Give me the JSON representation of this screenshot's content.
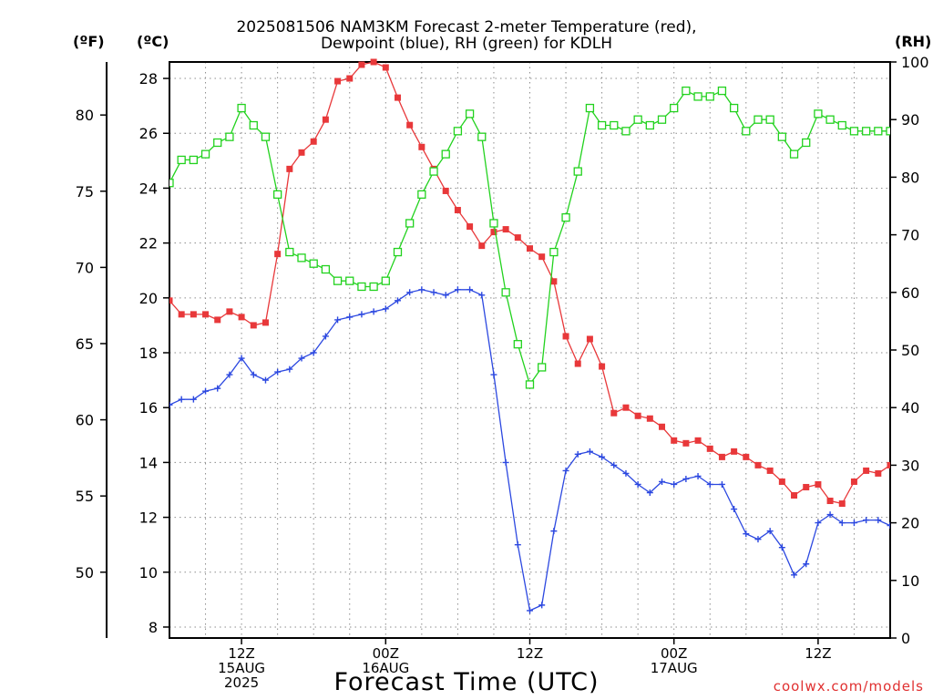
{
  "title_line1": "2025081506 NAM3KM Forecast 2-meter Temperature (red),",
  "title_line2": "Dewpoint (blue), RH (green) for KDLH",
  "unit_f": "(ºF)",
  "unit_c": "(ºC)",
  "unit_rh": "(RH)",
  "x_title": "Forecast Time (UTC)",
  "credit": "coolwx.com/models",
  "chart_data": {
    "type": "line",
    "title": "2025081506 NAM3KM Forecast 2-meter Temperature (red), Dewpoint (blue), RH (green) for KDLH",
    "xlabel": "Forecast Time (UTC)",
    "x_hours": [
      6,
      7,
      8,
      9,
      10,
      11,
      12,
      13,
      14,
      15,
      16,
      17,
      18,
      19,
      20,
      21,
      22,
      23,
      24,
      25,
      26,
      27,
      28,
      29,
      30,
      31,
      32,
      33,
      34,
      35,
      36,
      37,
      38,
      39,
      40,
      41,
      42,
      43,
      44,
      45,
      46,
      47,
      48,
      49,
      50,
      51,
      52,
      53,
      54,
      55,
      56,
      57,
      58,
      59,
      60,
      61,
      62,
      63,
      64,
      65,
      66
    ],
    "xlim": [
      6,
      66
    ],
    "x_ticks": [
      {
        "hour": 12,
        "lines": [
          "12Z",
          "15AUG",
          "2025"
        ]
      },
      {
        "hour": 24,
        "lines": [
          "00Z",
          "16AUG"
        ]
      },
      {
        "hour": 36,
        "lines": [
          "12Z"
        ]
      },
      {
        "hour": 48,
        "lines": [
          "00Z",
          "17AUG"
        ]
      },
      {
        "hour": 60,
        "lines": [
          "12Z"
        ]
      }
    ],
    "left_axis_c": {
      "label": "(ºC)",
      "ylim": [
        7.6,
        28.6
      ],
      "ticks": [
        "8",
        "10",
        "12",
        "14",
        "16",
        "18",
        "20",
        "22",
        "24",
        "26",
        "28"
      ]
    },
    "left_axis_f": {
      "label": "(ºF)",
      "ticks": [
        "50",
        "55",
        "60",
        "65",
        "70",
        "75",
        "80"
      ]
    },
    "right_axis_rh": {
      "label": "(RH)",
      "ylim": [
        0,
        100
      ],
      "ticks": [
        "0",
        "10",
        "20",
        "30",
        "40",
        "50",
        "60",
        "70",
        "80",
        "90",
        "100"
      ]
    },
    "grid": true,
    "series": [
      {
        "name": "Temperature",
        "units": "C",
        "axis": "c",
        "color": "#e8383a",
        "marker": "filled-square",
        "values": [
          19.9,
          19.4,
          19.4,
          19.4,
          19.2,
          19.5,
          19.3,
          19.0,
          19.1,
          21.6,
          24.7,
          25.3,
          25.7,
          26.5,
          27.9,
          28.0,
          28.5,
          28.6,
          28.4,
          27.3,
          26.3,
          25.5,
          24.7,
          23.9,
          23.2,
          22.6,
          21.9,
          22.4,
          22.5,
          22.2,
          21.8,
          21.5,
          20.6,
          18.6,
          17.6,
          18.5,
          17.5,
          15.8,
          16.0,
          15.7,
          15.6,
          15.3,
          14.8,
          14.7,
          14.8,
          14.5,
          14.2,
          14.4,
          14.2,
          13.9,
          13.7,
          13.3,
          12.8,
          13.1,
          13.2,
          12.6,
          12.5,
          13.3,
          13.7,
          13.6,
          13.9
        ]
      },
      {
        "name": "Dewpoint",
        "units": "C",
        "axis": "c",
        "color": "#2c48e0",
        "marker": "plus",
        "values": [
          16.1,
          16.3,
          16.3,
          16.6,
          16.7,
          17.2,
          17.8,
          17.2,
          17.0,
          17.3,
          17.4,
          17.8,
          18.0,
          18.6,
          19.2,
          19.3,
          19.4,
          19.5,
          19.6,
          19.9,
          20.2,
          20.3,
          20.2,
          20.1,
          20.3,
          20.3,
          20.1,
          17.2,
          14.0,
          11.0,
          8.6,
          8.8,
          11.5,
          13.7,
          14.3,
          14.4,
          14.2,
          13.9,
          13.6,
          13.2,
          12.9,
          13.3,
          13.2,
          13.4,
          13.5,
          13.2,
          13.2,
          12.3,
          11.4,
          11.2,
          11.5,
          10.9,
          9.9,
          10.3,
          11.8,
          12.1,
          11.8,
          11.8,
          11.9,
          11.9,
          11.7
        ]
      },
      {
        "name": "RH",
        "units": "%",
        "axis": "rh",
        "color": "#22d21e",
        "marker": "open-square",
        "values": [
          79,
          83,
          83,
          84,
          86,
          87,
          92,
          89,
          87,
          77,
          67,
          66,
          65,
          64,
          62,
          62,
          61,
          61,
          62,
          67,
          72,
          77,
          81,
          84,
          88,
          91,
          87,
          72,
          60,
          51,
          44,
          47,
          67,
          73,
          81,
          92,
          89,
          89,
          88,
          90,
          89,
          90,
          92,
          95,
          94,
          94,
          95,
          92,
          88,
          90,
          90,
          87,
          84,
          86,
          91,
          90,
          89,
          88,
          88,
          88,
          88
        ]
      }
    ]
  }
}
